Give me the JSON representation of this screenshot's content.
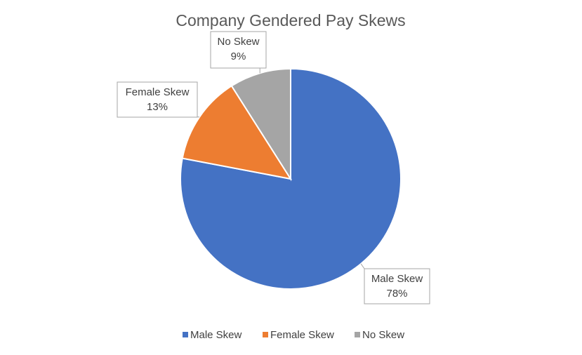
{
  "chart_data": {
    "type": "pie",
    "title": "Company Gendered Pay Skews",
    "categories": [
      "Male Skew",
      "Female Skew",
      "No Skew"
    ],
    "values": [
      78,
      13,
      9
    ],
    "value_labels": [
      "78%",
      "13%",
      "9%"
    ],
    "colors": [
      "#4472c4",
      "#ed7d31",
      "#a5a5a5"
    ],
    "legend": "bottom"
  }
}
